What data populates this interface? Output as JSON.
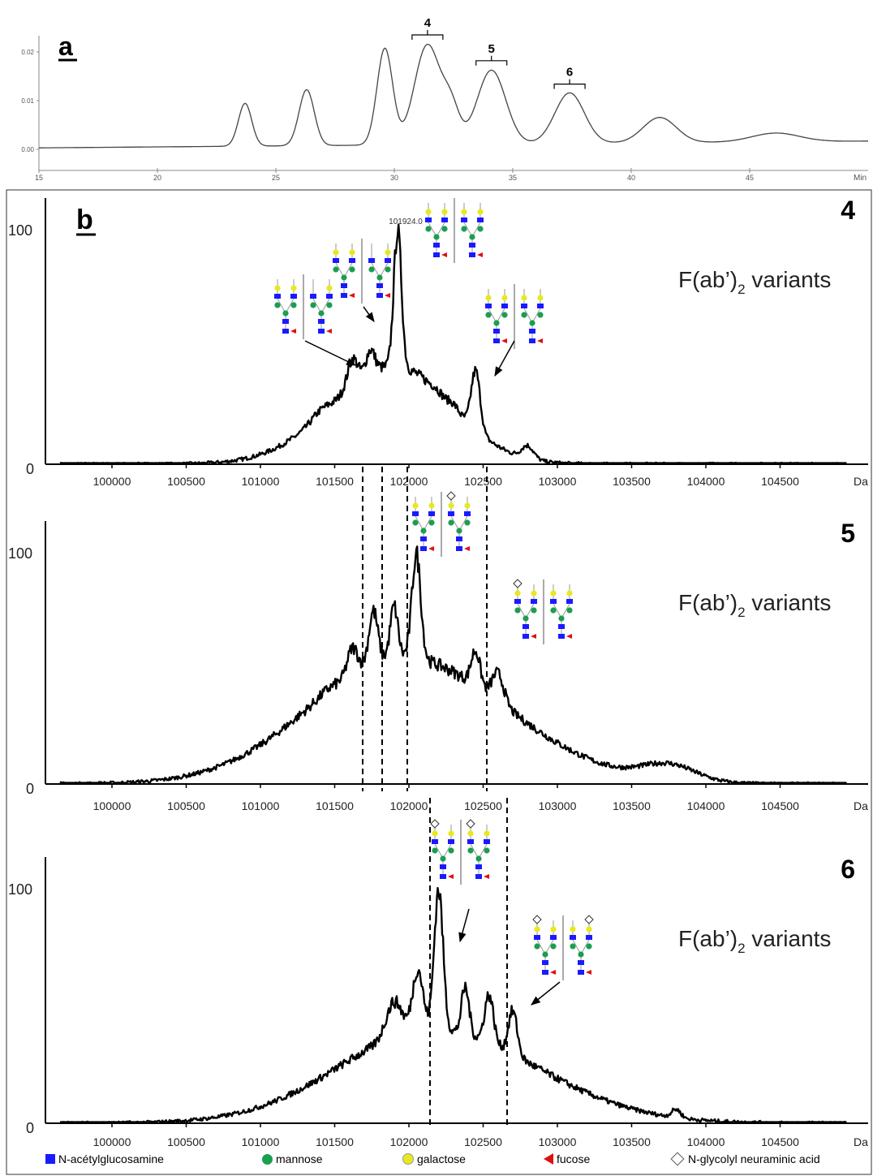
{
  "panel_a": {
    "letter": "a",
    "y_ticks": [
      "0.02",
      "0.01",
      "0.00"
    ],
    "x_unit": "Min",
    "peak_labels": [
      "4",
      "5",
      "6"
    ]
  },
  "panel_b": {
    "letter": "b",
    "spectra_titles": [
      "F(ab’)",
      "F(ab’)",
      "F(ab’)"
    ],
    "subscript": "2",
    "title_suffix": " variants",
    "fraction_numbers": [
      "4",
      "5",
      "6"
    ],
    "x_unit": "Da",
    "y_ticks": [
      "100",
      "0"
    ],
    "top_peak_label": "101924.0"
  },
  "legend": {
    "items": [
      {
        "label": "N-acétylglucosamine",
        "symbol": "square",
        "color": "#1a1aff"
      },
      {
        "label": "mannose",
        "symbol": "circle",
        "color": "#1a9e50"
      },
      {
        "label": "galactose",
        "symbol": "circle",
        "color": "#e8e820"
      },
      {
        "label": "fucose",
        "symbol": "triangle",
        "color": "#e01010"
      },
      {
        "label": "N-glycolyl neuraminic acid",
        "symbol": "diamond",
        "color": "#ffffff"
      }
    ]
  },
  "chart_data": [
    {
      "type": "line",
      "title": "",
      "xlabel": "Min",
      "ylabel": "",
      "xlim": [
        15,
        50
      ],
      "ylim": [
        0,
        0.022
      ],
      "x_ticks": [
        15,
        20,
        25,
        30,
        35,
        40,
        45
      ],
      "y_ticks": [
        0.0,
        0.01,
        0.02
      ],
      "peaks": [
        {
          "x": 23.7,
          "y": 0.0088
        },
        {
          "x": 26.3,
          "y": 0.0115
        },
        {
          "x": 29.6,
          "y": 0.0198
        },
        {
          "x": 31.4,
          "y": 0.0205,
          "label": "4"
        },
        {
          "x": 32.4,
          "y": 0.0068
        },
        {
          "x": 34.1,
          "y": 0.0152,
          "label": "5"
        },
        {
          "x": 37.4,
          "y": 0.0104,
          "label": "6"
        },
        {
          "x": 41.2,
          "y": 0.0052
        },
        {
          "x": 46.1,
          "y": 0.0018
        }
      ]
    },
    {
      "type": "line",
      "title": "4",
      "xlabel": "Da",
      "ylabel": "",
      "xlim": [
        99600,
        105000
      ],
      "ylim": [
        0,
        100
      ],
      "x_ticks": [
        100000,
        100500,
        101000,
        101500,
        102000,
        102500,
        103000,
        103500,
        104000,
        104500
      ],
      "peaks": [
        {
          "x": 101400,
          "y": 23
        },
        {
          "x": 101620,
          "y": 45
        },
        {
          "x": 101740,
          "y": 49
        },
        {
          "x": 101924,
          "y": 100
        },
        {
          "x": 102180,
          "y": 33
        },
        {
          "x": 102300,
          "y": 26
        },
        {
          "x": 102450,
          "y": 40
        },
        {
          "x": 102800,
          "y": 8
        }
      ]
    },
    {
      "type": "line",
      "title": "5",
      "xlabel": "Da",
      "ylabel": "",
      "xlim": [
        99600,
        105000
      ],
      "ylim": [
        0,
        100
      ],
      "x_ticks": [
        100000,
        100500,
        101000,
        101500,
        102000,
        102500,
        103000,
        103500,
        104000,
        104500
      ],
      "peaks": [
        {
          "x": 101450,
          "y": 41
        },
        {
          "x": 101620,
          "y": 59
        },
        {
          "x": 101760,
          "y": 75
        },
        {
          "x": 101900,
          "y": 77
        },
        {
          "x": 102050,
          "y": 100
        },
        {
          "x": 102250,
          "y": 50
        },
        {
          "x": 102450,
          "y": 58
        },
        {
          "x": 102600,
          "y": 48
        },
        {
          "x": 103750,
          "y": 9
        }
      ]
    },
    {
      "type": "line",
      "title": "6",
      "xlabel": "Da",
      "ylabel": "",
      "xlim": [
        99600,
        105000
      ],
      "ylim": [
        0,
        100
      ],
      "x_ticks": [
        100000,
        100500,
        101000,
        101500,
        102000,
        102500,
        103000,
        103500,
        104000,
        104500
      ],
      "peaks": [
        {
          "x": 101900,
          "y": 52
        },
        {
          "x": 102060,
          "y": 66
        },
        {
          "x": 102200,
          "y": 100
        },
        {
          "x": 102380,
          "y": 58
        },
        {
          "x": 102540,
          "y": 55
        },
        {
          "x": 102700,
          "y": 48
        },
        {
          "x": 103800,
          "y": 6
        }
      ]
    }
  ]
}
